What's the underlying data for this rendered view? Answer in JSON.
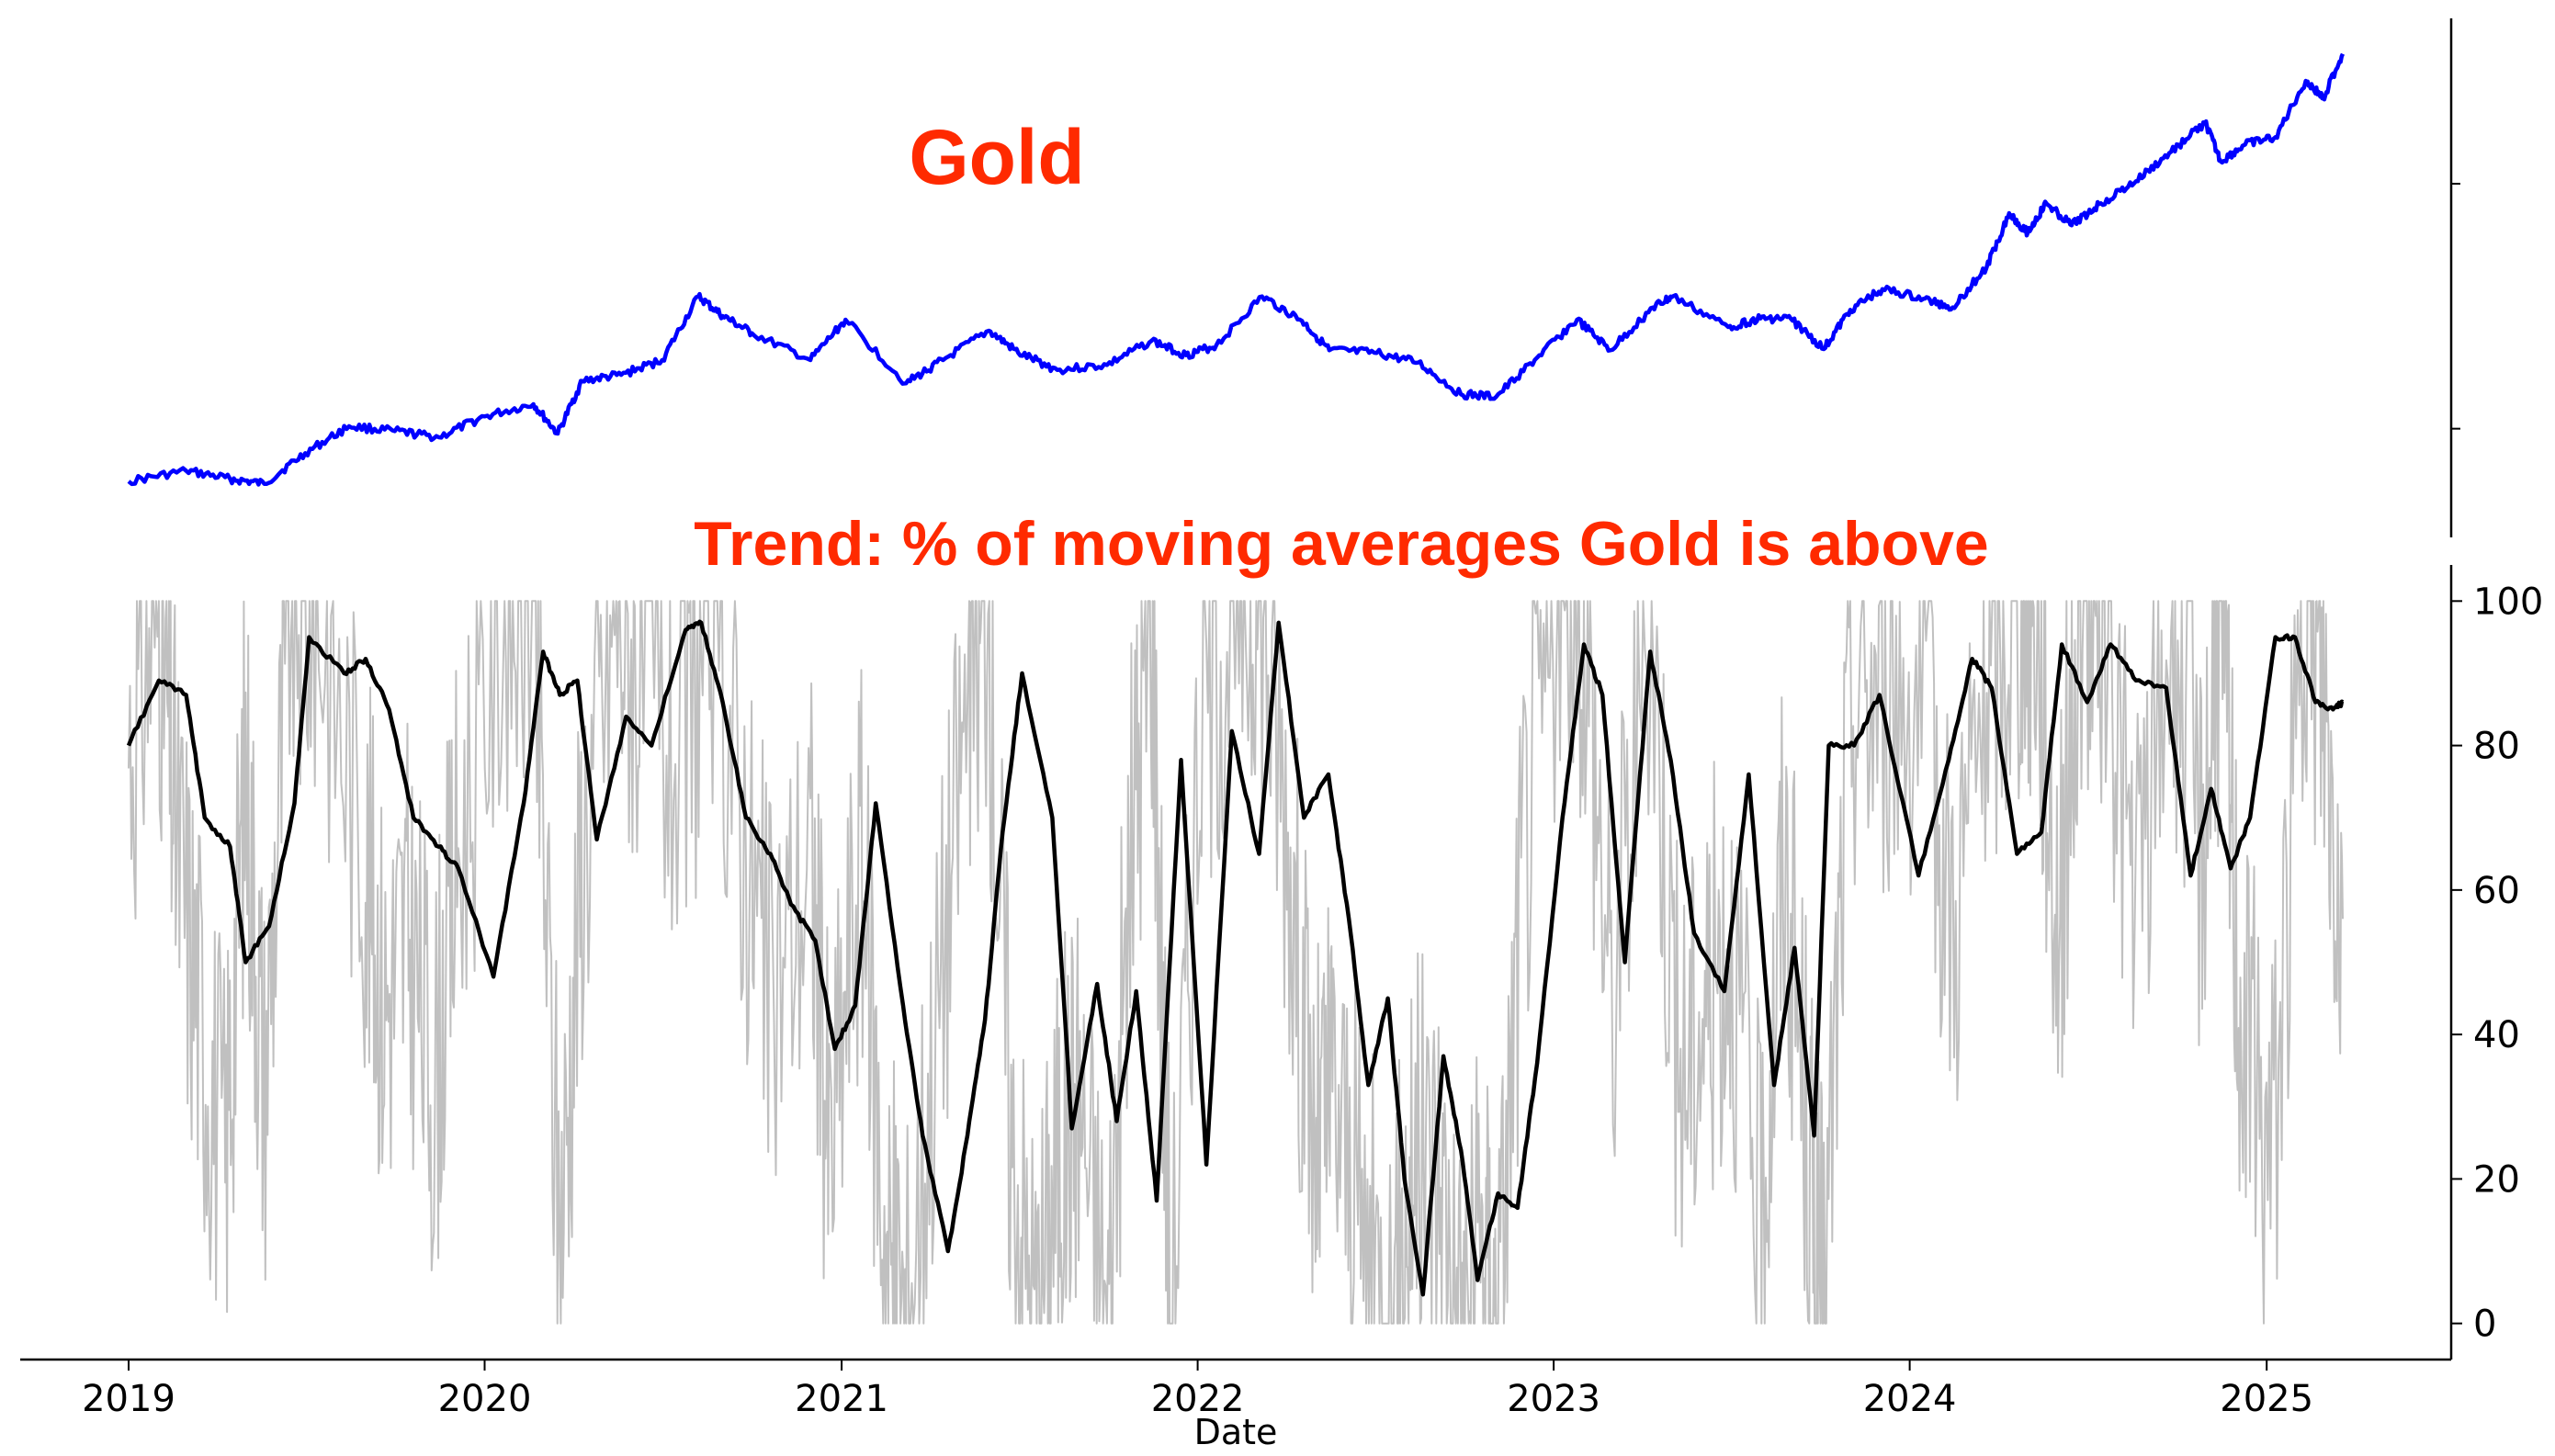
{
  "chart_data": [
    {
      "type": "line",
      "title": "Gold",
      "title_color": "#ff2a00",
      "y_ticks_labeled": false,
      "y_axis_side": "right",
      "series": [
        {
          "color": "#0000ff",
          "x": [
            "2019-01-01",
            "2019-03-01",
            "2019-04-15",
            "2019-05-20",
            "2019-07-01",
            "2019-08-15",
            "2019-10-01",
            "2019-11-15",
            "2020-01-01",
            "2020-02-20",
            "2020-03-16",
            "2020-04-10",
            "2020-05-20",
            "2020-07-01",
            "2020-08-07",
            "2020-09-01",
            "2020-10-01",
            "2020-11-30",
            "2021-01-05",
            "2021-03-08",
            "2021-04-15",
            "2021-06-01",
            "2021-07-01",
            "2021-08-10",
            "2021-09-30",
            "2021-11-15",
            "2021-12-20",
            "2022-01-20",
            "2022-03-08",
            "2022-04-18",
            "2022-05-16",
            "2022-07-01",
            "2022-08-15",
            "2022-09-28",
            "2022-11-03",
            "2022-12-15",
            "2023-01-25",
            "2023-02-28",
            "2023-04-13",
            "2023-05-03",
            "2023-06-29",
            "2023-08-01",
            "2023-09-01",
            "2023-10-05",
            "2023-11-01",
            "2023-12-04",
            "2024-01-15",
            "2024-02-14",
            "2024-03-20",
            "2024-04-12",
            "2024-05-01",
            "2024-05-20",
            "2024-06-15",
            "2024-07-15",
            "2024-08-20",
            "2024-09-25",
            "2024-10-30",
            "2024-11-15",
            "2024-12-10",
            "2025-01-10",
            "2025-02-10",
            "2025-02-28",
            "2025-03-20"
          ],
          "values": [
            1285,
            1328,
            1295,
            1275,
            1400,
            1510,
            1490,
            1465,
            1550,
            1600,
            1480,
            1695,
            1720,
            1780,
            2040,
            1960,
            1890,
            1780,
            1945,
            1685,
            1780,
            1900,
            1810,
            1740,
            1760,
            1860,
            1800,
            1840,
            2040,
            1940,
            1820,
            1810,
            1770,
            1640,
            1630,
            1790,
            1945,
            1820,
            1995,
            2040,
            1915,
            1950,
            1950,
            1825,
            1985,
            2070,
            2030,
            1995,
            2160,
            2380,
            2300,
            2420,
            2330,
            2420,
            2510,
            2630,
            2750,
            2590,
            2660,
            2690,
            2920,
            2850,
            3030
          ]
        }
      ]
    },
    {
      "type": "line",
      "title": "Trend: % of moving averages Gold is above",
      "title_color": "#ff2a00",
      "xlabel": "Date",
      "ylabel": "",
      "ylim": [
        -5,
        105
      ],
      "y_ticks": [
        0,
        20,
        40,
        60,
        80,
        100
      ],
      "x_ticks": [
        "2019",
        "2020",
        "2021",
        "2022",
        "2023",
        "2024",
        "2025"
      ],
      "y_axis_side": "right",
      "grid": false,
      "series": [
        {
          "style": "raw",
          "color": "#c0c0c0",
          "x": [
            "2019-01-01",
            "2019-02-01",
            "2019-02-20",
            "2019-03-15",
            "2019-04-10",
            "2019-05-01",
            "2019-05-20",
            "2019-06-15",
            "2019-07-15",
            "2019-08-30",
            "2019-09-20",
            "2019-10-15",
            "2019-11-10",
            "2019-12-05",
            "2020-01-20",
            "2020-02-20",
            "2020-03-18",
            "2020-04-10",
            "2020-05-15",
            "2020-06-10",
            "2020-07-20",
            "2020-08-20",
            "2020-09-25",
            "2020-10-20",
            "2020-11-30",
            "2020-12-20",
            "2021-01-20",
            "2021-02-15",
            "2021-03-08",
            "2021-04-10",
            "2021-05-10",
            "2021-05-30",
            "2021-06-25",
            "2021-07-20",
            "2021-08-10",
            "2021-09-01",
            "2021-09-30",
            "2021-10-25",
            "2021-11-15",
            "2021-12-05",
            "2022-01-05",
            "2022-02-10",
            "2022-03-08",
            "2022-04-05",
            "2022-05-01",
            "2022-05-20",
            "2022-06-20",
            "2022-07-20",
            "2022-08-10",
            "2022-09-05",
            "2022-09-28",
            "2022-10-20",
            "2022-11-05",
            "2022-12-01",
            "2023-01-05",
            "2023-02-01",
            "2023-03-01",
            "2023-04-10",
            "2023-05-10",
            "2023-06-05",
            "2023-07-01",
            "2023-08-01",
            "2023-08-25",
            "2023-09-20",
            "2023-10-05",
            "2023-11-01",
            "2023-12-05",
            "2024-01-15",
            "2024-02-14",
            "2024-03-20",
            "2024-04-20",
            "2024-05-10",
            "2024-06-01",
            "2024-06-25",
            "2024-07-20",
            "2024-08-20",
            "2024-09-25",
            "2024-10-25",
            "2024-11-15",
            "2024-12-05",
            "2025-01-05",
            "2025-02-10",
            "2025-03-01",
            "2025-03-20"
          ],
          "values": [
            80,
            100,
            66,
            44,
            22,
            78,
            33,
            100,
            100,
            66,
            44,
            55,
            33,
            66,
            100,
            100,
            11,
            66,
            100,
            88,
            77,
            100,
            66,
            44,
            66,
            22,
            66,
            11,
            0,
            44,
            88,
            100,
            22,
            0,
            22,
            33,
            0,
            66,
            100,
            0,
            88,
            100,
            100,
            66,
            22,
            33,
            11,
            0,
            22,
            22,
            0,
            11,
            0,
            66,
            100,
            100,
            44,
            100,
            33,
            44,
            55,
            11,
            66,
            22,
            0,
            88,
            88,
            88,
            55,
            88,
            100,
            100,
            55,
            100,
            100,
            55,
            100,
            66,
            100,
            44,
            22,
            100,
            88,
            56
          ]
        },
        {
          "style": "smoothed",
          "color": "#000000",
          "x": [
            "2019-01-01",
            "2019-02-01",
            "2019-03-01",
            "2019-03-20",
            "2019-04-15",
            "2019-05-01",
            "2019-05-25",
            "2019-06-20",
            "2019-07-05",
            "2019-08-10",
            "2019-09-01",
            "2019-09-25",
            "2019-10-20",
            "2019-11-15",
            "2019-12-05",
            "2020-01-10",
            "2020-02-10",
            "2020-03-01",
            "2020-03-18",
            "2020-04-05",
            "2020-04-25",
            "2020-05-25",
            "2020-06-20",
            "2020-07-25",
            "2020-08-10",
            "2020-09-01",
            "2020-09-25",
            "2020-10-20",
            "2020-11-10",
            "2020-12-05",
            "2020-12-25",
            "2021-01-15",
            "2021-02-05",
            "2021-03-05",
            "2021-03-25",
            "2021-04-20",
            "2021-05-10",
            "2021-05-28",
            "2021-06-15",
            "2021-07-05",
            "2021-08-05",
            "2021-08-25",
            "2021-09-20",
            "2021-10-10",
            "2021-10-30",
            "2021-11-20",
            "2021-12-15",
            "2022-01-10",
            "2022-02-05",
            "2022-03-05",
            "2022-03-25",
            "2022-04-20",
            "2022-05-15",
            "2022-06-05",
            "2022-06-25",
            "2022-07-15",
            "2022-08-01",
            "2022-08-20",
            "2022-09-10",
            "2022-09-28",
            "2022-10-15",
            "2022-11-05",
            "2022-11-25",
            "2022-12-15",
            "2023-01-10",
            "2023-02-01",
            "2023-02-20",
            "2023-03-15",
            "2023-04-10",
            "2023-05-01",
            "2023-05-25",
            "2023-06-25",
            "2023-07-20",
            "2023-08-15",
            "2023-09-05",
            "2023-09-25",
            "2023-10-10",
            "2023-11-05",
            "2023-12-01",
            "2024-01-10",
            "2024-02-10",
            "2024-03-05",
            "2024-03-25",
            "2024-04-20",
            "2024-05-15",
            "2024-06-05",
            "2024-07-01",
            "2024-07-25",
            "2024-08-20",
            "2024-09-20",
            "2024-10-15",
            "2024-11-05",
            "2024-11-25",
            "2024-12-15",
            "2025-01-10",
            "2025-01-30",
            "2025-02-20",
            "2025-03-10",
            "2025-03-20"
          ],
          "values": [
            80,
            89,
            87,
            70,
            66,
            50,
            55,
            72,
            95,
            90,
            92,
            85,
            70,
            66,
            63,
            48,
            72,
            93,
            87,
            89,
            67,
            84,
            80,
            96,
            97,
            86,
            70,
            65,
            58,
            53,
            38,
            44,
            72,
            44,
            26,
            10,
            26,
            42,
            68,
            90,
            70,
            27,
            47,
            28,
            46,
            17,
            78,
            22,
            82,
            65,
            97,
            70,
            76,
            56,
            33,
            45,
            20,
            4,
            37,
            24,
            6,
            18,
            16,
            36,
            70,
            94,
            87,
            50,
            93,
            78,
            54,
            46,
            76,
            33,
            52,
            26,
            80,
            80,
            87,
            62,
            78,
            92,
            88,
            65,
            68,
            94,
            86,
            94,
            89,
            88,
            62,
            74,
            63,
            70,
            95,
            95,
            86,
            85,
            86
          ]
        }
      ]
    }
  ]
}
